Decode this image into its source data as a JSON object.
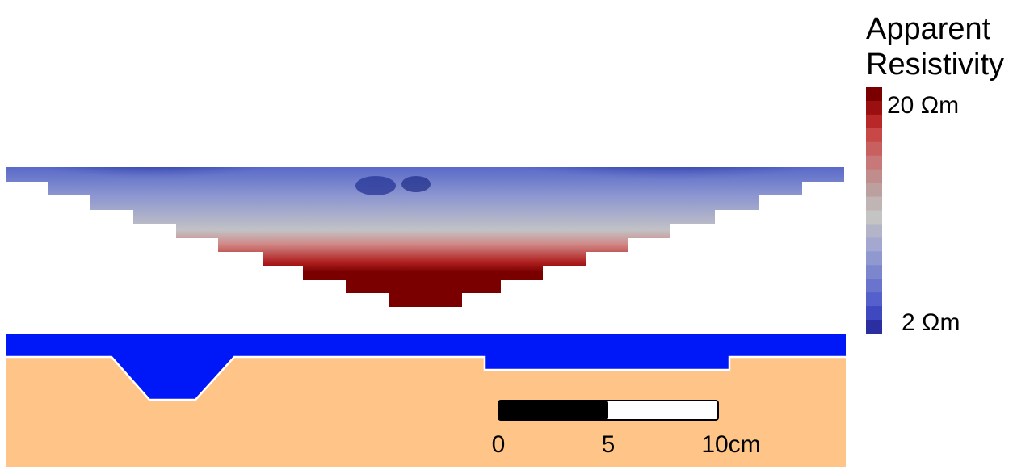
{
  "legend": {
    "title_lines": [
      "Apparent",
      "Resistivity"
    ],
    "max_label": "20 Ωm",
    "min_label": "2 Ωm"
  },
  "scale_bar": {
    "labels": [
      "0",
      "5",
      "10cm"
    ]
  }
}
